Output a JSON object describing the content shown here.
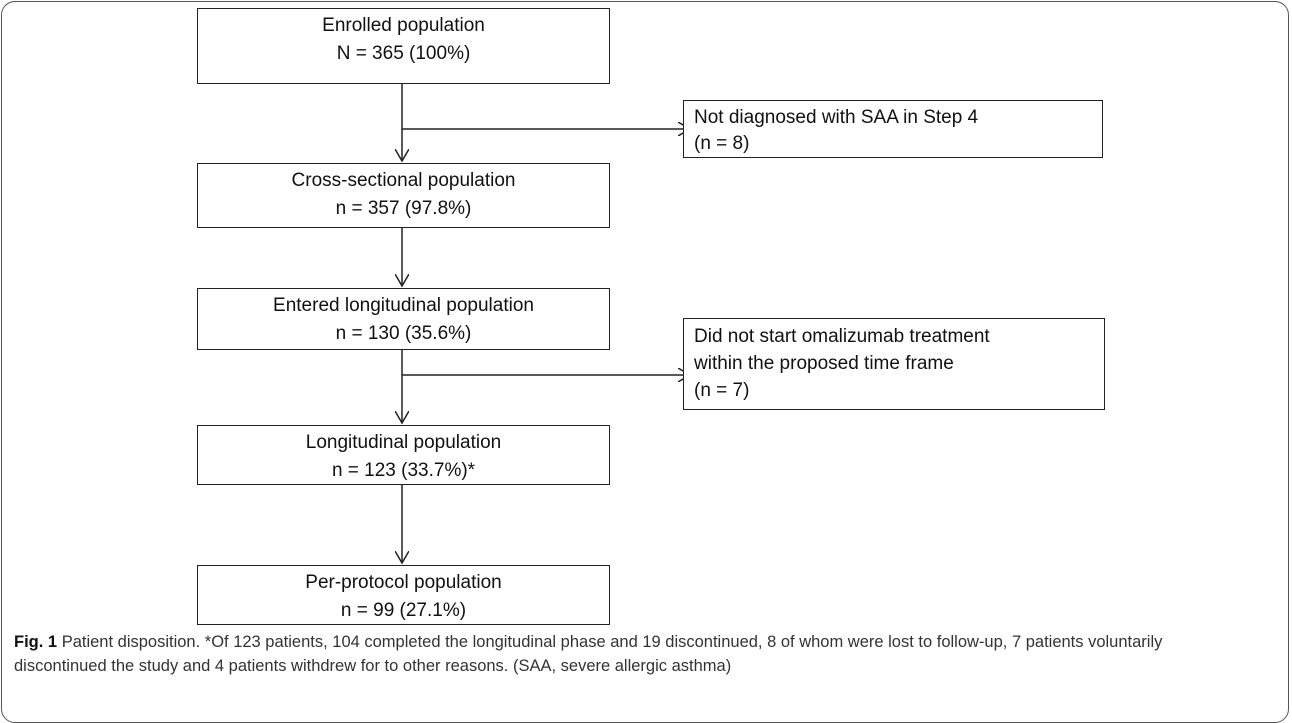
{
  "nodes": [
    {
      "lines": [
        "Enrolled population",
        "N = 365 (100%)"
      ]
    },
    {
      "lines": [
        "Not diagnosed with SAA in Step 4",
        "(n = 8)"
      ]
    },
    {
      "lines": [
        "Cross-sectional population",
        "n = 357 (97.8%)"
      ]
    },
    {
      "lines": [
        "Entered longitudinal population",
        "n = 130 (35.6%)"
      ]
    },
    {
      "lines": [
        "Did not start omalizumab treatment",
        "within the proposed time frame",
        "(n = 7)"
      ]
    },
    {
      "lines": [
        "Longitudinal population",
        "n = 123 (33.7%)*"
      ]
    },
    {
      "lines": [
        "Per-protocol population",
        "n = 99 (27.1%)"
      ]
    }
  ],
  "caption": {
    "label": "Fig. 1",
    "text": "Patient disposition. *Of 123 patients, 104 completed the longitudinal phase and 19 discontinued, 8 of whom were lost to follow-up, 7 patients voluntarily discontinued the study and 4 patients withdrew for to other reasons. (SAA, severe allergic asthma)"
  }
}
